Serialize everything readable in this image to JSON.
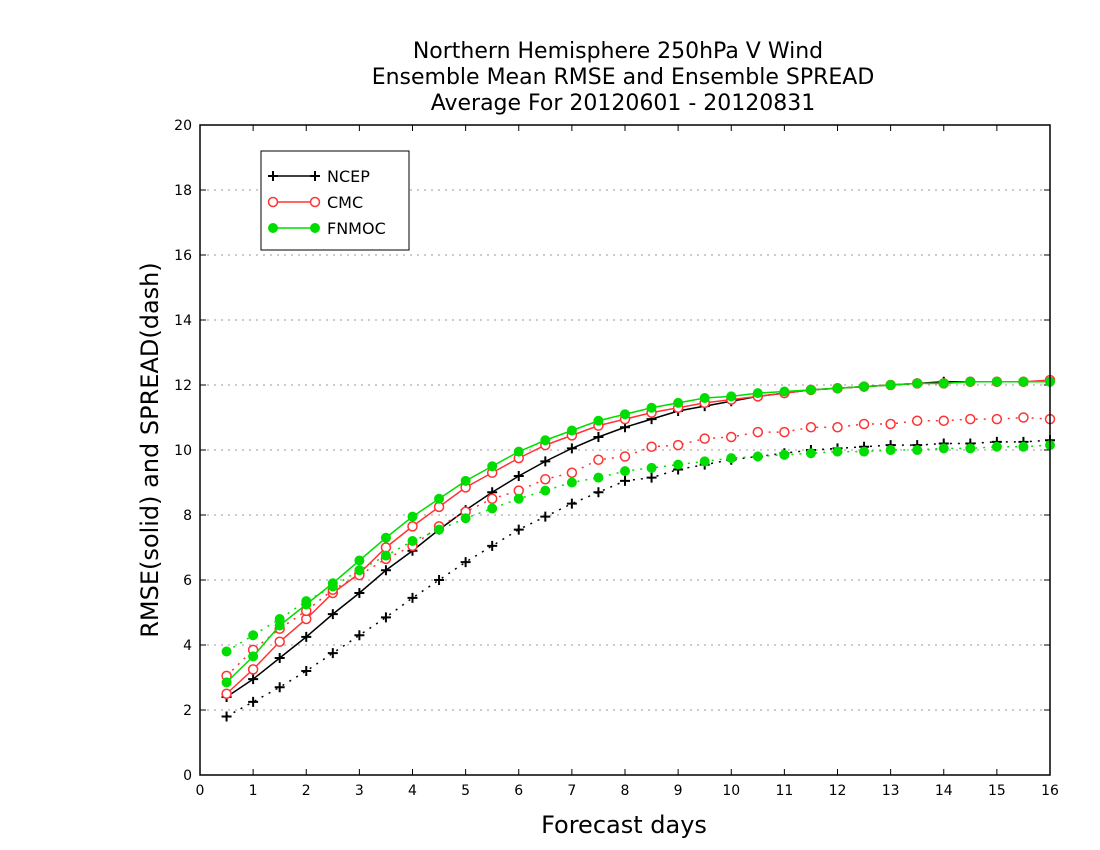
{
  "chart_data": {
    "type": "line",
    "title_lines": [
      "Northern Hemisphere 250hPa V Wind",
      "Ensemble Mean RMSE and Ensemble SPREAD",
      "Average For 20120601 - 20120831"
    ],
    "xlabel": "Forecast days",
    "ylabel": "RMSE(solid) and SPREAD(dash)",
    "xlim": [
      0,
      16
    ],
    "ylim": [
      0,
      20
    ],
    "x_ticks": [
      "0",
      "1",
      "2",
      "3",
      "4",
      "5",
      "6",
      "7",
      "8",
      "9",
      "10",
      "11",
      "12",
      "13",
      "14",
      "15",
      "16"
    ],
    "y_ticks": [
      "0",
      "2",
      "4",
      "6",
      "8",
      "10",
      "12",
      "14",
      "16",
      "18",
      "20"
    ],
    "grid": "horizontal dotted",
    "legend_position": "top-left",
    "x": [
      0.5,
      1,
      1.5,
      2,
      2.5,
      3,
      3.5,
      4,
      4.5,
      5,
      5.5,
      6,
      6.5,
      7,
      7.5,
      8,
      8.5,
      9,
      9.5,
      10,
      10.5,
      11,
      11.5,
      12,
      12.5,
      13,
      13.5,
      14,
      14.5,
      15,
      15.5,
      16
    ],
    "series": [
      {
        "name": "NCEP",
        "color": "#000000",
        "marker": "plus",
        "rmse": [
          2.4,
          2.95,
          3.6,
          4.25,
          4.95,
          5.6,
          6.3,
          6.9,
          7.55,
          8.15,
          8.7,
          9.2,
          9.65,
          10.05,
          10.4,
          10.7,
          10.95,
          11.2,
          11.35,
          11.5,
          11.65,
          11.75,
          11.85,
          11.9,
          11.95,
          12.0,
          12.05,
          12.1,
          12.1,
          12.1,
          12.1,
          12.1
        ],
        "spread": [
          1.8,
          2.25,
          2.7,
          3.2,
          3.75,
          4.3,
          4.85,
          5.45,
          6.0,
          6.55,
          7.05,
          7.55,
          7.95,
          8.35,
          8.7,
          9.05,
          9.15,
          9.4,
          9.55,
          9.7,
          9.8,
          9.9,
          10.0,
          10.05,
          10.1,
          10.15,
          10.15,
          10.2,
          10.2,
          10.25,
          10.25,
          10.3
        ]
      },
      {
        "name": "CMC",
        "color": "#ff3333",
        "marker": "open-circle",
        "rmse": [
          2.5,
          3.25,
          4.1,
          4.8,
          5.6,
          6.2,
          7.0,
          7.65,
          8.25,
          8.85,
          9.3,
          9.75,
          10.15,
          10.45,
          10.75,
          10.95,
          11.15,
          11.3,
          11.45,
          11.55,
          11.65,
          11.75,
          11.85,
          11.9,
          11.95,
          12.0,
          12.05,
          12.05,
          12.1,
          12.1,
          12.1,
          12.15
        ],
        "spread": [
          3.05,
          3.85,
          4.5,
          5.05,
          5.7,
          6.15,
          6.65,
          7.05,
          7.65,
          8.1,
          8.5,
          8.75,
          9.1,
          9.3,
          9.7,
          9.8,
          10.1,
          10.15,
          10.35,
          10.4,
          10.55,
          10.55,
          10.7,
          10.7,
          10.8,
          10.8,
          10.9,
          10.9,
          10.95,
          10.95,
          11.0,
          10.95
        ]
      },
      {
        "name": "FNMOC",
        "color": "#00dd00",
        "marker": "filled-circle",
        "rmse": [
          2.85,
          3.65,
          4.6,
          5.25,
          5.9,
          6.6,
          7.3,
          7.95,
          8.5,
          9.05,
          9.5,
          9.95,
          10.3,
          10.6,
          10.9,
          11.1,
          11.3,
          11.45,
          11.6,
          11.65,
          11.75,
          11.8,
          11.85,
          11.9,
          11.95,
          12.0,
          12.05,
          12.05,
          12.1,
          12.1,
          12.1,
          12.1
        ],
        "spread": [
          3.8,
          4.3,
          4.8,
          5.35,
          5.8,
          6.3,
          6.75,
          7.2,
          7.55,
          7.9,
          8.2,
          8.5,
          8.75,
          9.0,
          9.15,
          9.35,
          9.45,
          9.55,
          9.65,
          9.75,
          9.8,
          9.85,
          9.9,
          9.95,
          9.95,
          10.0,
          10.0,
          10.05,
          10.05,
          10.1,
          10.1,
          10.15
        ]
      }
    ]
  }
}
